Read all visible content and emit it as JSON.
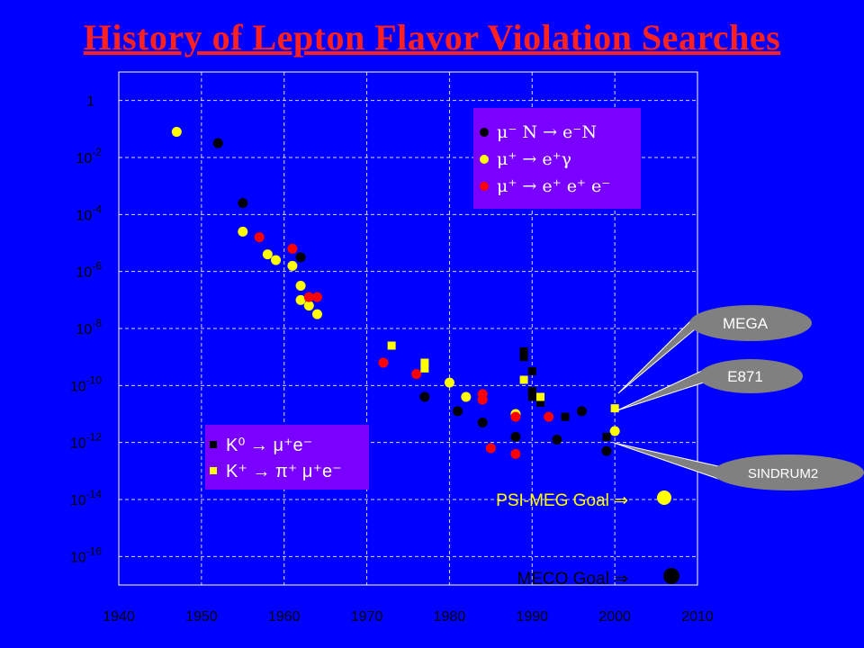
{
  "title": "History of Lepton Flavor Violation Searches",
  "colors": {
    "background": "#0000ff",
    "title": "#ff2020",
    "legend_box": "#7a00ff",
    "callout": "#808080",
    "mu_N_eN": "#000000",
    "mu_egamma": "#ffff00",
    "mu_eee": "#ff0000",
    "K0": "#000000",
    "Kplus": "#ffff00"
  },
  "chart_data": {
    "type": "scatter",
    "title": "History of Lepton Flavor Violation Searches",
    "xlabel": "",
    "ylabel": "",
    "xlim": [
      1940,
      2010
    ],
    "ylog": true,
    "ylim_exp": [
      -17,
      1
    ],
    "grid": true,
    "x_ticks": [
      "1940",
      "1950",
      "1960",
      "1970",
      "1980",
      "1990",
      "2000",
      "2010"
    ],
    "y_ticks": [
      {
        "exp": 0,
        "base": "1",
        "sup": ""
      },
      {
        "exp": -2,
        "base": "10",
        "sup": "-2"
      },
      {
        "exp": -4,
        "base": "10",
        "sup": "-4"
      },
      {
        "exp": -6,
        "base": "10",
        "sup": "-6"
      },
      {
        "exp": -8,
        "base": "10",
        "sup": "-8"
      },
      {
        "exp": -10,
        "base": "10",
        "sup": "-10"
      },
      {
        "exp": -12,
        "base": "10",
        "sup": "-12"
      },
      {
        "exp": -14,
        "base": "10",
        "sup": "-14"
      },
      {
        "exp": -16,
        "base": "10",
        "sup": "-16"
      }
    ],
    "legend_muon": [
      {
        "series": "mu_N_eN",
        "text": "μ⁻ N → e⁻N"
      },
      {
        "series": "mu_egamma",
        "text": "μ⁺ → e⁺γ"
      },
      {
        "series": "mu_eee",
        "text": "μ⁺ → e⁺ e⁺ e⁻"
      }
    ],
    "legend_kaon": [
      {
        "series": "K0",
        "text": "K⁰ → μ⁺e⁻"
      },
      {
        "series": "Kplus",
        "text": "K⁺ → π⁺ μ⁺e⁻"
      }
    ],
    "series": [
      {
        "key": "mu_N_eN",
        "marker": "circle",
        "color": "#000000",
        "points": [
          [
            1952,
            -1.5
          ],
          [
            1955,
            -3.6
          ],
          [
            1962,
            -5.5
          ],
          [
            1963,
            -7.2
          ],
          [
            1977,
            -10.4
          ],
          [
            1981,
            -10.9
          ],
          [
            1984,
            -11.3
          ],
          [
            1988,
            -11.8
          ],
          [
            1993,
            -11.9
          ],
          [
            1996,
            -10.9
          ],
          [
            1999,
            -12.3
          ]
        ]
      },
      {
        "key": "mu_egamma",
        "marker": "circle",
        "color": "#ffff00",
        "points": [
          [
            1947,
            -1.1
          ],
          [
            1955,
            -4.6
          ],
          [
            1958,
            -5.4
          ],
          [
            1959,
            -5.6
          ],
          [
            1961,
            -5.8
          ],
          [
            1962,
            -6.5
          ],
          [
            1962,
            -7.0
          ],
          [
            1963,
            -7.2
          ],
          [
            1964,
            -7.5
          ],
          [
            1980,
            -9.9
          ],
          [
            1982,
            -10.4
          ],
          [
            1988,
            -11.0
          ],
          [
            2000,
            -11.6
          ]
        ]
      },
      {
        "key": "mu_eee",
        "marker": "circle",
        "color": "#ff0000",
        "points": [
          [
            1957,
            -4.8
          ],
          [
            1961,
            -5.2
          ],
          [
            1963,
            -6.9
          ],
          [
            1964,
            -6.9
          ],
          [
            1972,
            -9.2
          ],
          [
            1976,
            -9.6
          ],
          [
            1984,
            -10.3
          ],
          [
            1984,
            -10.5
          ],
          [
            1985,
            -12.2
          ],
          [
            1988,
            -11.1
          ],
          [
            1988,
            -12.4
          ],
          [
            1992,
            -11.1
          ]
        ]
      },
      {
        "key": "K0",
        "marker": "square",
        "color": "#000000",
        "points": [
          [
            1989,
            -8.8
          ],
          [
            1989,
            -9.0
          ],
          [
            1990,
            -9.5
          ],
          [
            1990,
            -10.2
          ],
          [
            1990,
            -10.4
          ],
          [
            1991,
            -10.6
          ],
          [
            1994,
            -11.1
          ],
          [
            1999,
            -11.8
          ]
        ]
      },
      {
        "key": "Kplus",
        "marker": "square",
        "color": "#ffff00",
        "points": [
          [
            1973,
            -8.6
          ],
          [
            1977,
            -9.2
          ],
          [
            1977,
            -9.4
          ],
          [
            1989,
            -9.8
          ],
          [
            1991,
            -10.4
          ],
          [
            2000,
            -10.8
          ]
        ]
      }
    ],
    "goals": [
      {
        "label": "PSI-MEG Goal",
        "arrow": "⇒",
        "color": "#ffff00"
      },
      {
        "label": "MECO Goal",
        "arrow": "⇒",
        "color": "#000000"
      }
    ],
    "callouts": [
      {
        "label": "MEGA"
      },
      {
        "label": "E871"
      },
      {
        "label": "SINDRUM2"
      }
    ]
  }
}
